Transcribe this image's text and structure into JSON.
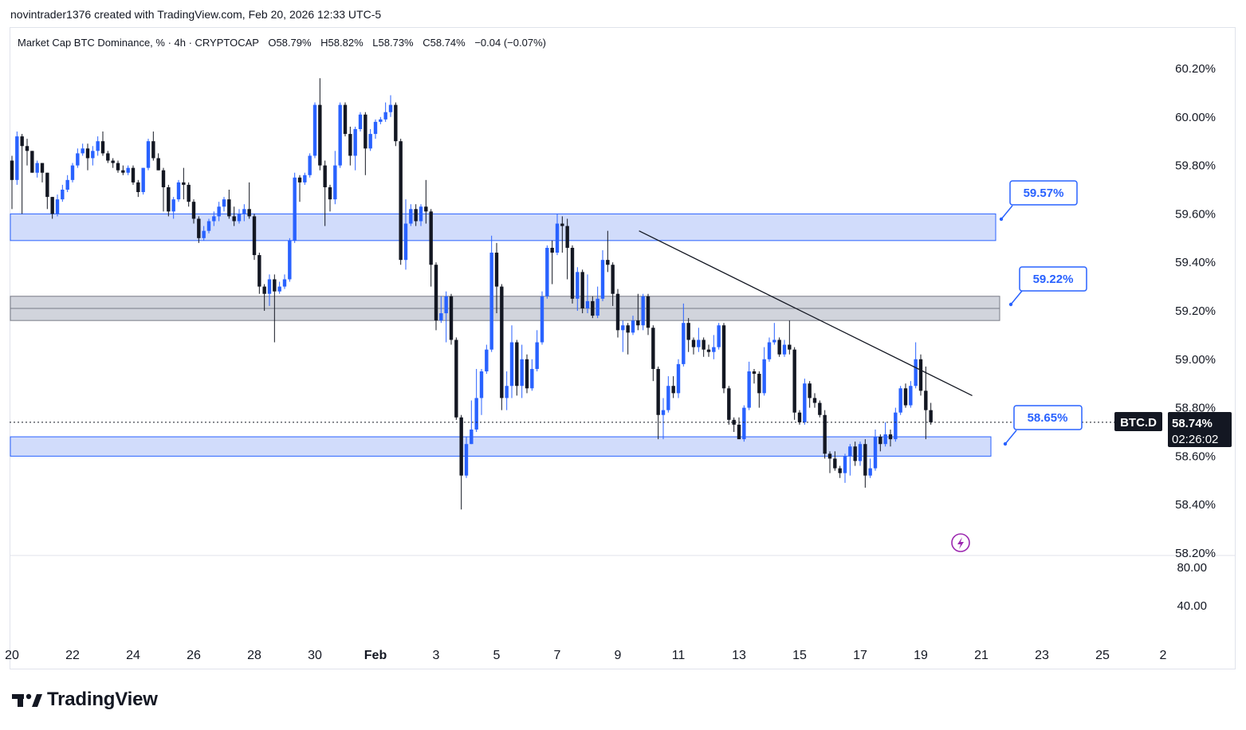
{
  "header": {
    "author": "novintrader1376",
    "created_text": "created with TradingView.com,",
    "timestamp": "Feb 20, 2026 12:33 UTC-5"
  },
  "legend": {
    "symbol_title": "Market Cap BTC Dominance, % · 4h · CRYPTOCAP",
    "open": "O58.79%",
    "high": "H58.82%",
    "low": "L58.73%",
    "close": "C58.74%",
    "change": "−0.04 (−0.07%)"
  },
  "price_badge": {
    "symbol": "BTC.D",
    "price": "58.74%",
    "countdown": "02:26:02"
  },
  "annotations": {
    "upper": "59.57%",
    "middle": "59.22%",
    "lower": "58.65%"
  },
  "branding": {
    "name": "TradingView"
  },
  "colors": {
    "up": "#2962ff",
    "down": "#131722",
    "zone_blue_fill": "#d1dcfb",
    "zone_blue_border": "#2962ff",
    "zone_gray_fill": "#d1d4dc",
    "label_blue": "#2962ff",
    "trendline": "#131722"
  },
  "chart_data": {
    "type": "candlestick",
    "ylim": [
      58.2,
      60.24
    ],
    "yticks": [
      60.2,
      60.0,
      59.8,
      59.6,
      59.4,
      59.2,
      59.0,
      58.8,
      58.6,
      58.4,
      58.2
    ],
    "ytick_labels": [
      "60.20%",
      "60.00%",
      "59.80%",
      "59.60%",
      "59.40%",
      "59.20%",
      "59.00%",
      "58.80%",
      "58.60%",
      "58.40%",
      "58.20%"
    ],
    "x_tick_labels": [
      "20",
      "22",
      "24",
      "26",
      "28",
      "30",
      "Feb",
      "3",
      "5",
      "7",
      "9",
      "11",
      "13",
      "15",
      "17",
      "19",
      "21",
      "23",
      "25",
      "2"
    ],
    "lower_pane_ticks": [
      "80.00",
      "40.00"
    ],
    "last_price": 58.74,
    "zones": [
      {
        "color": "blue",
        "from": 59.49,
        "to": 59.6
      },
      {
        "color": "gray",
        "from": 59.16,
        "to": 59.26
      },
      {
        "color": "blue",
        "from": 58.6,
        "to": 58.68
      }
    ],
    "mid_line": 59.21,
    "trendline": {
      "from": [
        "Feb 10",
        59.53
      ],
      "to": [
        "Feb 21",
        58.85
      ]
    },
    "candles": [
      [
        59.82,
        59.74,
        59.84,
        59.62
      ],
      [
        59.74,
        59.92,
        59.94,
        59.72
      ],
      [
        59.92,
        59.88,
        59.93,
        59.6
      ],
      [
        59.88,
        59.86,
        59.91,
        59.8
      ],
      [
        59.86,
        59.77,
        59.86,
        59.77
      ],
      [
        59.77,
        59.81,
        59.82,
        59.75
      ],
      [
        59.81,
        59.77,
        59.81,
        59.73
      ],
      [
        59.77,
        59.67,
        59.77,
        59.62
      ],
      [
        59.67,
        59.6,
        59.67,
        59.58
      ],
      [
        59.6,
        59.66,
        59.68,
        59.59
      ],
      [
        59.66,
        59.7,
        59.72,
        59.65
      ],
      [
        59.7,
        59.74,
        59.76,
        59.69
      ],
      [
        59.74,
        59.8,
        59.81,
        59.73
      ],
      [
        59.8,
        59.85,
        59.87,
        59.79
      ],
      [
        59.85,
        59.87,
        59.89,
        59.84
      ],
      [
        59.87,
        59.83,
        59.89,
        59.78
      ],
      [
        59.83,
        59.86,
        59.88,
        59.8
      ],
      [
        59.86,
        59.9,
        59.92,
        59.84
      ],
      [
        59.9,
        59.85,
        59.94,
        59.84
      ],
      [
        59.85,
        59.82,
        59.86,
        59.81
      ],
      [
        59.82,
        59.81,
        59.83,
        59.79
      ],
      [
        59.81,
        59.78,
        59.82,
        59.77
      ],
      [
        59.78,
        59.77,
        59.8,
        59.76
      ],
      [
        59.77,
        59.79,
        59.8,
        59.76
      ],
      [
        59.79,
        59.73,
        59.8,
        59.72
      ],
      [
        59.73,
        59.69,
        59.74,
        59.67
      ],
      [
        59.69,
        59.79,
        59.79,
        59.68
      ],
      [
        59.79,
        59.9,
        59.91,
        59.78
      ],
      [
        59.9,
        59.83,
        59.94,
        59.82
      ],
      [
        59.83,
        59.78,
        59.85,
        59.78
      ],
      [
        59.78,
        59.71,
        59.79,
        59.61
      ],
      [
        59.71,
        59.61,
        59.72,
        59.59
      ],
      [
        59.61,
        59.66,
        59.67,
        59.58
      ],
      [
        59.66,
        59.73,
        59.74,
        59.65
      ],
      [
        59.73,
        59.72,
        59.79,
        59.66
      ],
      [
        59.72,
        59.65,
        59.73,
        59.63
      ],
      [
        59.65,
        59.58,
        59.66,
        59.56
      ],
      [
        59.58,
        59.5,
        59.59,
        59.48
      ],
      [
        59.5,
        59.53,
        59.55,
        59.49
      ],
      [
        59.53,
        59.57,
        59.58,
        59.52
      ],
      [
        59.57,
        59.59,
        59.61,
        59.55
      ],
      [
        59.59,
        59.63,
        59.65,
        59.57
      ],
      [
        59.63,
        59.66,
        59.67,
        59.61
      ],
      [
        59.66,
        59.59,
        59.7,
        59.58
      ],
      [
        59.59,
        59.57,
        59.63,
        59.55
      ],
      [
        59.57,
        59.6,
        59.62,
        59.56
      ],
      [
        59.6,
        59.62,
        59.64,
        59.57
      ],
      [
        59.62,
        59.59,
        59.73,
        59.58
      ],
      [
        59.59,
        59.43,
        59.6,
        59.41
      ],
      [
        59.43,
        59.3,
        59.44,
        59.27
      ],
      [
        59.3,
        59.27,
        59.31,
        59.2
      ],
      [
        59.27,
        59.33,
        59.35,
        59.22
      ],
      [
        59.33,
        59.28,
        59.35,
        59.07
      ],
      [
        59.28,
        59.3,
        59.32,
        59.27
      ],
      [
        59.3,
        59.33,
        59.35,
        59.29
      ],
      [
        59.33,
        59.49,
        59.5,
        59.32
      ],
      [
        59.49,
        59.75,
        59.77,
        59.48
      ],
      [
        59.75,
        59.73,
        59.76,
        59.65
      ],
      [
        59.73,
        59.76,
        59.77,
        59.72
      ],
      [
        59.76,
        59.84,
        59.85,
        59.75
      ],
      [
        59.84,
        60.05,
        60.06,
        59.83
      ],
      [
        60.05,
        59.8,
        60.16,
        59.78
      ],
      [
        59.8,
        59.71,
        59.82,
        59.55
      ],
      [
        59.71,
        59.66,
        59.72,
        59.61
      ],
      [
        59.66,
        59.8,
        59.86,
        59.64
      ],
      [
        59.8,
        60.05,
        60.06,
        59.79
      ],
      [
        60.05,
        59.93,
        60.06,
        59.92
      ],
      [
        59.93,
        59.84,
        59.96,
        59.8
      ],
      [
        59.84,
        59.95,
        59.96,
        59.78
      ],
      [
        59.95,
        60.01,
        60.02,
        59.94
      ],
      [
        60.01,
        59.87,
        60.02,
        59.76
      ],
      [
        59.87,
        59.93,
        59.95,
        59.86
      ],
      [
        59.93,
        59.98,
        59.99,
        59.91
      ],
      [
        59.98,
        59.99,
        60.0,
        59.97
      ],
      [
        59.99,
        60.02,
        60.06,
        59.98
      ],
      [
        60.02,
        60.05,
        60.09,
        60.0
      ],
      [
        60.05,
        59.9,
        60.06,
        59.88
      ],
      [
        59.9,
        59.41,
        59.91,
        59.39
      ],
      [
        59.41,
        59.56,
        59.66,
        59.37
      ],
      [
        59.56,
        59.62,
        59.64,
        59.55
      ],
      [
        59.62,
        59.57,
        59.64,
        59.55
      ],
      [
        59.57,
        59.63,
        59.64,
        59.55
      ],
      [
        59.63,
        59.61,
        59.74,
        59.56
      ],
      [
        59.61,
        59.39,
        59.62,
        59.3
      ],
      [
        59.39,
        59.16,
        59.4,
        59.12
      ],
      [
        59.16,
        59.19,
        59.26,
        59.15
      ],
      [
        59.19,
        59.26,
        59.28,
        59.07
      ],
      [
        59.26,
        59.08,
        59.27,
        59.06
      ],
      [
        59.08,
        58.76,
        59.09,
        58.75
      ],
      [
        58.76,
        58.52,
        58.77,
        58.38
      ],
      [
        58.52,
        58.65,
        58.68,
        58.51
      ],
      [
        58.65,
        58.71,
        58.83,
        58.65
      ],
      [
        58.71,
        58.84,
        58.96,
        58.7
      ],
      [
        58.84,
        58.95,
        58.96,
        58.77
      ],
      [
        58.95,
        59.04,
        59.06,
        58.94
      ],
      [
        59.04,
        59.44,
        59.51,
        59.03
      ],
      [
        59.44,
        59.3,
        59.48,
        59.19
      ],
      [
        59.3,
        58.84,
        59.31,
        58.79
      ],
      [
        58.84,
        58.89,
        58.95,
        58.79
      ],
      [
        58.89,
        59.07,
        59.14,
        58.84
      ],
      [
        59.07,
        58.89,
        59.08,
        58.85
      ],
      [
        58.89,
        59.0,
        59.06,
        58.84
      ],
      [
        59.0,
        58.88,
        59.02,
        58.86
      ],
      [
        58.88,
        58.96,
        59.0,
        58.87
      ],
      [
        58.96,
        59.07,
        59.12,
        58.95
      ],
      [
        59.07,
        59.26,
        59.28,
        59.06
      ],
      [
        59.26,
        59.46,
        59.47,
        59.25
      ],
      [
        59.46,
        59.44,
        59.49,
        59.31
      ],
      [
        59.44,
        59.56,
        59.6,
        59.43
      ],
      [
        59.56,
        59.55,
        59.59,
        59.44
      ],
      [
        59.55,
        59.46,
        59.58,
        59.33
      ],
      [
        59.46,
        59.25,
        59.47,
        59.23
      ],
      [
        59.25,
        59.36,
        59.38,
        59.2
      ],
      [
        59.36,
        59.21,
        59.37,
        59.19
      ],
      [
        59.21,
        59.24,
        59.35,
        59.19
      ],
      [
        59.24,
        59.18,
        59.26,
        59.17
      ],
      [
        59.18,
        59.25,
        59.3,
        59.17
      ],
      [
        59.25,
        59.41,
        59.45,
        59.24
      ],
      [
        59.41,
        59.39,
        59.53,
        59.36
      ],
      [
        59.39,
        59.27,
        59.4,
        59.22
      ],
      [
        59.27,
        59.12,
        59.29,
        59.09
      ],
      [
        59.12,
        59.14,
        59.16,
        59.03
      ],
      [
        59.14,
        59.11,
        59.15,
        59.02
      ],
      [
        59.11,
        59.16,
        59.18,
        59.1
      ],
      [
        59.16,
        59.14,
        59.27,
        59.12
      ],
      [
        59.14,
        59.26,
        59.27,
        59.12
      ],
      [
        59.26,
        59.13,
        59.27,
        59.1
      ],
      [
        59.13,
        58.96,
        59.14,
        58.91
      ],
      [
        58.96,
        58.77,
        58.97,
        58.67
      ],
      [
        58.77,
        58.79,
        58.84,
        58.67
      ],
      [
        58.79,
        58.89,
        58.93,
        58.78
      ],
      [
        58.89,
        58.86,
        58.93,
        58.84
      ],
      [
        58.86,
        58.98,
        59.0,
        58.84
      ],
      [
        58.98,
        59.15,
        59.23,
        58.97
      ],
      [
        59.15,
        59.08,
        59.17,
        59.03
      ],
      [
        59.08,
        59.05,
        59.09,
        59.02
      ],
      [
        59.05,
        59.08,
        59.13,
        59.03
      ],
      [
        59.08,
        59.04,
        59.09,
        59.01
      ],
      [
        59.04,
        59.03,
        59.06,
        59.01
      ],
      [
        59.03,
        59.05,
        59.1,
        59.0
      ],
      [
        59.05,
        59.14,
        59.15,
        59.04
      ],
      [
        59.14,
        58.88,
        59.15,
        58.86
      ],
      [
        58.88,
        58.75,
        58.89,
        58.73
      ],
      [
        58.75,
        58.73,
        58.76,
        58.7
      ],
      [
        58.73,
        58.67,
        58.76,
        58.69
      ],
      [
        58.67,
        58.8,
        58.81,
        58.66
      ],
      [
        58.8,
        58.95,
        58.99,
        58.79
      ],
      [
        58.95,
        58.94,
        58.96,
        58.9
      ],
      [
        58.94,
        58.86,
        58.95,
        58.8
      ],
      [
        58.86,
        59.0,
        59.05,
        58.85
      ],
      [
        59.0,
        59.07,
        59.09,
        58.99
      ],
      [
        59.07,
        59.08,
        59.15,
        59.06
      ],
      [
        59.08,
        59.02,
        59.09,
        59.01
      ],
      [
        59.02,
        59.06,
        59.08,
        59.01
      ],
      [
        59.06,
        59.04,
        59.16,
        59.02
      ],
      [
        59.04,
        58.78,
        59.05,
        58.75
      ],
      [
        58.78,
        58.74,
        58.79,
        58.73
      ],
      [
        58.74,
        58.9,
        58.92,
        58.73
      ],
      [
        58.9,
        58.84,
        58.91,
        58.8
      ],
      [
        58.84,
        58.82,
        58.86,
        58.8
      ],
      [
        58.82,
        58.77,
        58.83,
        58.76
      ],
      [
        58.77,
        58.61,
        58.79,
        58.59
      ],
      [
        58.61,
        58.59,
        58.62,
        58.53
      ],
      [
        58.59,
        58.55,
        58.62,
        58.54
      ],
      [
        58.55,
        58.53,
        58.56,
        58.51
      ],
      [
        58.53,
        58.6,
        58.61,
        58.49
      ],
      [
        58.6,
        58.64,
        58.65,
        58.52
      ],
      [
        58.64,
        58.58,
        58.66,
        58.56
      ],
      [
        58.58,
        58.65,
        58.66,
        58.56
      ],
      [
        58.65,
        58.52,
        58.67,
        58.47
      ],
      [
        58.52,
        58.55,
        58.59,
        58.51
      ],
      [
        58.55,
        58.68,
        58.71,
        58.54
      ],
      [
        58.68,
        58.65,
        58.69,
        58.62
      ],
      [
        58.65,
        58.69,
        58.74,
        58.64
      ],
      [
        58.69,
        58.67,
        58.71,
        58.64
      ],
      [
        58.67,
        58.78,
        58.8,
        58.66
      ],
      [
        58.78,
        58.88,
        58.89,
        58.77
      ],
      [
        58.88,
        58.81,
        58.9,
        58.8
      ],
      [
        58.81,
        58.89,
        58.91,
        58.8
      ],
      [
        58.89,
        59.0,
        59.07,
        58.88
      ],
      [
        59.0,
        58.87,
        59.02,
        58.85
      ],
      [
        58.87,
        58.79,
        58.97,
        58.67
      ],
      [
        58.79,
        58.74,
        58.82,
        58.73
      ]
    ]
  }
}
